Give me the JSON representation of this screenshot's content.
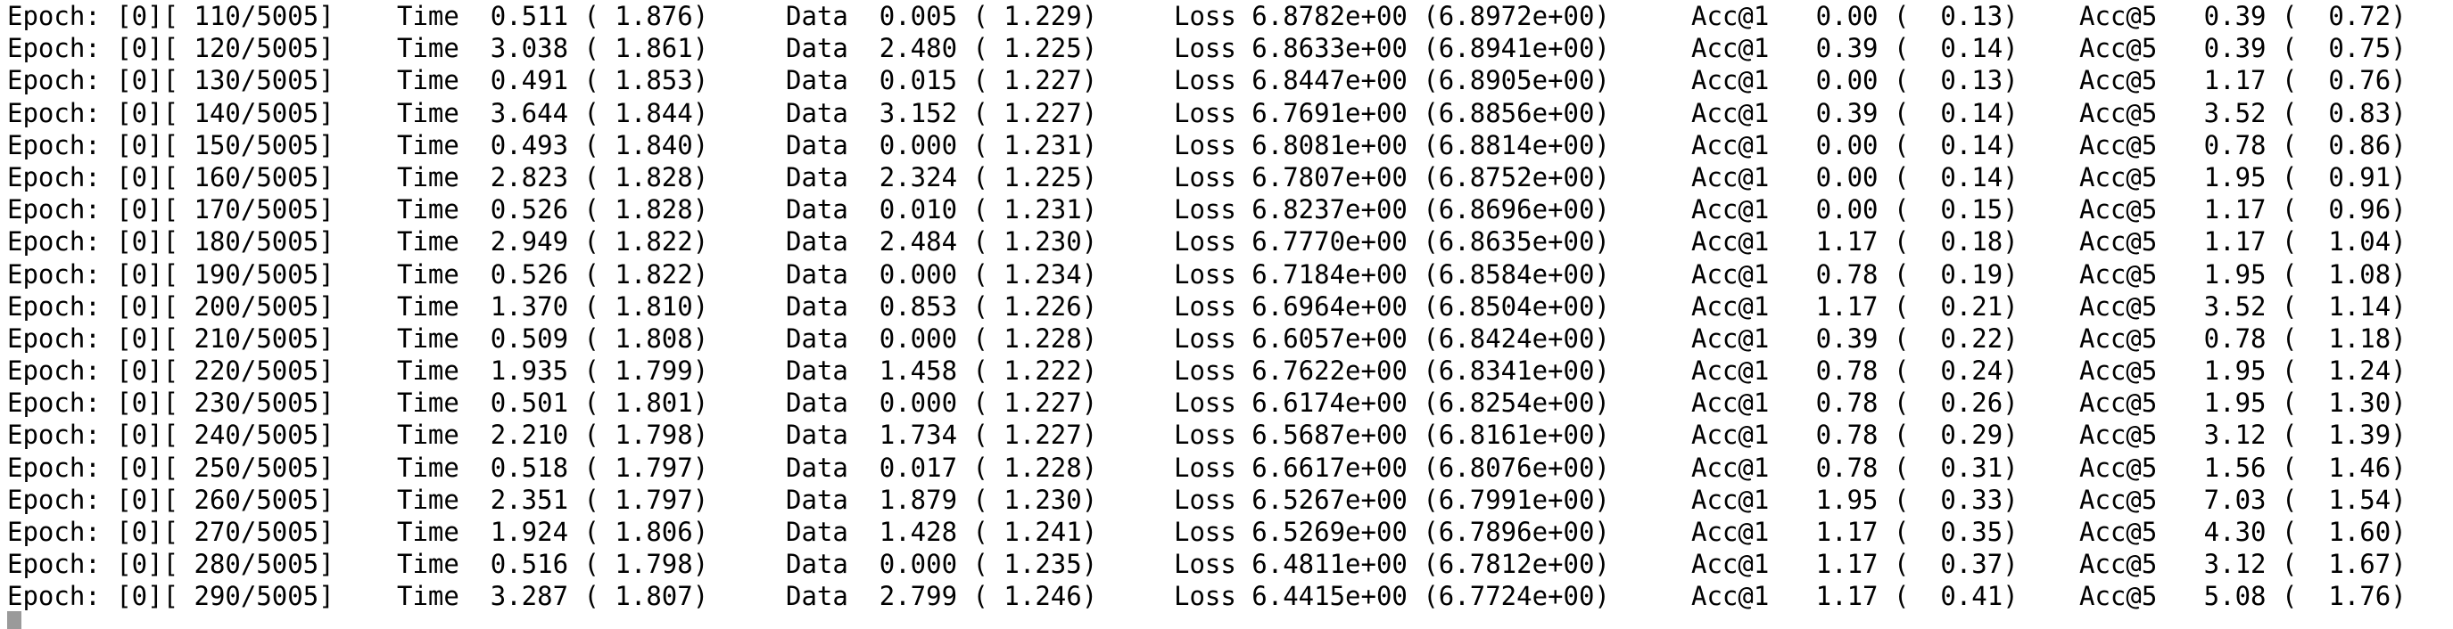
{
  "terminal": {
    "cursor_color": "#9a9a9a",
    "lines": [
      {
        "epoch": "Epoch: [0][ 110/5005]",
        "time": "Time  0.511 ( 1.876)",
        "data": "Data  0.005 ( 1.229)",
        "loss": "Loss 6.8782e+00 (6.8972e+00)",
        "acc1": "Acc@1   0.00 (  0.13)",
        "acc5": "Acc@5   0.39 (  0.72)"
      },
      {
        "epoch": "Epoch: [0][ 120/5005]",
        "time": "Time  3.038 ( 1.861)",
        "data": "Data  2.480 ( 1.225)",
        "loss": "Loss 6.8633e+00 (6.8941e+00)",
        "acc1": "Acc@1   0.39 (  0.14)",
        "acc5": "Acc@5   0.39 (  0.75)"
      },
      {
        "epoch": "Epoch: [0][ 130/5005]",
        "time": "Time  0.491 ( 1.853)",
        "data": "Data  0.015 ( 1.227)",
        "loss": "Loss 6.8447e+00 (6.8905e+00)",
        "acc1": "Acc@1   0.00 (  0.13)",
        "acc5": "Acc@5   1.17 (  0.76)"
      },
      {
        "epoch": "Epoch: [0][ 140/5005]",
        "time": "Time  3.644 ( 1.844)",
        "data": "Data  3.152 ( 1.227)",
        "loss": "Loss 6.7691e+00 (6.8856e+00)",
        "acc1": "Acc@1   0.39 (  0.14)",
        "acc5": "Acc@5   3.52 (  0.83)"
      },
      {
        "epoch": "Epoch: [0][ 150/5005]",
        "time": "Time  0.493 ( 1.840)",
        "data": "Data  0.000 ( 1.231)",
        "loss": "Loss 6.8081e+00 (6.8814e+00)",
        "acc1": "Acc@1   0.00 (  0.14)",
        "acc5": "Acc@5   0.78 (  0.86)"
      },
      {
        "epoch": "Epoch: [0][ 160/5005]",
        "time": "Time  2.823 ( 1.828)",
        "data": "Data  2.324 ( 1.225)",
        "loss": "Loss 6.7807e+00 (6.8752e+00)",
        "acc1": "Acc@1   0.00 (  0.14)",
        "acc5": "Acc@5   1.95 (  0.91)"
      },
      {
        "epoch": "Epoch: [0][ 170/5005]",
        "time": "Time  0.526 ( 1.828)",
        "data": "Data  0.010 ( 1.231)",
        "loss": "Loss 6.8237e+00 (6.8696e+00)",
        "acc1": "Acc@1   0.00 (  0.15)",
        "acc5": "Acc@5   1.17 (  0.96)"
      },
      {
        "epoch": "Epoch: [0][ 180/5005]",
        "time": "Time  2.949 ( 1.822)",
        "data": "Data  2.484 ( 1.230)",
        "loss": "Loss 6.7770e+00 (6.8635e+00)",
        "acc1": "Acc@1   1.17 (  0.18)",
        "acc5": "Acc@5   1.17 (  1.04)"
      },
      {
        "epoch": "Epoch: [0][ 190/5005]",
        "time": "Time  0.526 ( 1.822)",
        "data": "Data  0.000 ( 1.234)",
        "loss": "Loss 6.7184e+00 (6.8584e+00)",
        "acc1": "Acc@1   0.78 (  0.19)",
        "acc5": "Acc@5   1.95 (  1.08)"
      },
      {
        "epoch": "Epoch: [0][ 200/5005]",
        "time": "Time  1.370 ( 1.810)",
        "data": "Data  0.853 ( 1.226)",
        "loss": "Loss 6.6964e+00 (6.8504e+00)",
        "acc1": "Acc@1   1.17 (  0.21)",
        "acc5": "Acc@5   3.52 (  1.14)"
      },
      {
        "epoch": "Epoch: [0][ 210/5005]",
        "time": "Time  0.509 ( 1.808)",
        "data": "Data  0.000 ( 1.228)",
        "loss": "Loss 6.6057e+00 (6.8424e+00)",
        "acc1": "Acc@1   0.39 (  0.22)",
        "acc5": "Acc@5   0.78 (  1.18)"
      },
      {
        "epoch": "Epoch: [0][ 220/5005]",
        "time": "Time  1.935 ( 1.799)",
        "data": "Data  1.458 ( 1.222)",
        "loss": "Loss 6.7622e+00 (6.8341e+00)",
        "acc1": "Acc@1   0.78 (  0.24)",
        "acc5": "Acc@5   1.95 (  1.24)"
      },
      {
        "epoch": "Epoch: [0][ 230/5005]",
        "time": "Time  0.501 ( 1.801)",
        "data": "Data  0.000 ( 1.227)",
        "loss": "Loss 6.6174e+00 (6.8254e+00)",
        "acc1": "Acc@1   0.78 (  0.26)",
        "acc5": "Acc@5   1.95 (  1.30)"
      },
      {
        "epoch": "Epoch: [0][ 240/5005]",
        "time": "Time  2.210 ( 1.798)",
        "data": "Data  1.734 ( 1.227)",
        "loss": "Loss 6.5687e+00 (6.8161e+00)",
        "acc1": "Acc@1   0.78 (  0.29)",
        "acc5": "Acc@5   3.12 (  1.39)"
      },
      {
        "epoch": "Epoch: [0][ 250/5005]",
        "time": "Time  0.518 ( 1.797)",
        "data": "Data  0.017 ( 1.228)",
        "loss": "Loss 6.6617e+00 (6.8076e+00)",
        "acc1": "Acc@1   0.78 (  0.31)",
        "acc5": "Acc@5   1.56 (  1.46)"
      },
      {
        "epoch": "Epoch: [0][ 260/5005]",
        "time": "Time  2.351 ( 1.797)",
        "data": "Data  1.879 ( 1.230)",
        "loss": "Loss 6.5267e+00 (6.7991e+00)",
        "acc1": "Acc@1   1.95 (  0.33)",
        "acc5": "Acc@5   7.03 (  1.54)"
      },
      {
        "epoch": "Epoch: [0][ 270/5005]",
        "time": "Time  1.924 ( 1.806)",
        "data": "Data  1.428 ( 1.241)",
        "loss": "Loss 6.5269e+00 (6.7896e+00)",
        "acc1": "Acc@1   1.17 (  0.35)",
        "acc5": "Acc@5   4.30 (  1.60)"
      },
      {
        "epoch": "Epoch: [0][ 280/5005]",
        "time": "Time  0.516 ( 1.798)",
        "data": "Data  0.000 ( 1.235)",
        "loss": "Loss 6.4811e+00 (6.7812e+00)",
        "acc1": "Acc@1   1.17 (  0.37)",
        "acc5": "Acc@5   3.12 (  1.67)"
      },
      {
        "epoch": "Epoch: [0][ 290/5005]",
        "time": "Time  3.287 ( 1.807)",
        "data": "Data  2.799 ( 1.246)",
        "loss": "Loss 6.4415e+00 (6.7724e+00)",
        "acc1": "Acc@1   1.17 (  0.41)",
        "acc5": "Acc@5   5.08 (  1.76)"
      }
    ]
  }
}
